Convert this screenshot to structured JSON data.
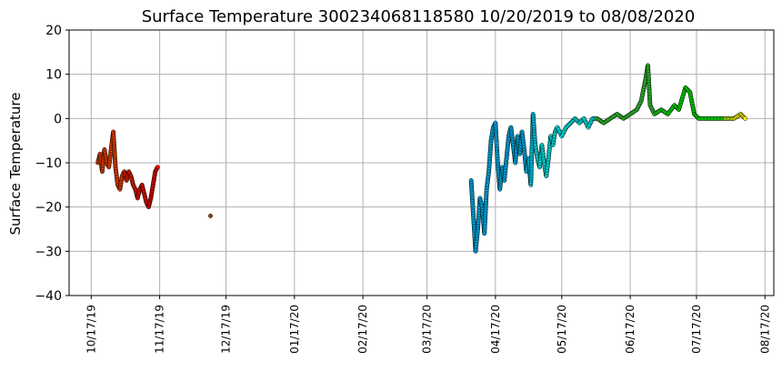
{
  "chart_data": {
    "type": "scatter",
    "title": "Surface Temperature 300234068118580  10/20/2019 to 08/08/2020",
    "xlabel": "",
    "ylabel": "Surface Temperature",
    "ylim": [
      -40,
      20
    ],
    "xlim": [
      "2019-10-07",
      "2020-08-21"
    ],
    "yticks": [
      20,
      10,
      0,
      -10,
      -20,
      -30,
      -40
    ],
    "xticks": [
      {
        "date": "2019-10-17",
        "label": "10/17/19"
      },
      {
        "date": "2019-11-17",
        "label": "11/17/19"
      },
      {
        "date": "2019-12-17",
        "label": "12/17/19"
      },
      {
        "date": "2020-01-17",
        "label": "01/17/20"
      },
      {
        "date": "2020-02-17",
        "label": "02/17/20"
      },
      {
        "date": "2020-03-17",
        "label": "03/17/20"
      },
      {
        "date": "2020-04-17",
        "label": "04/17/20"
      },
      {
        "date": "2020-05-17",
        "label": "05/17/20"
      },
      {
        "date": "2020-06-17",
        "label": "06/17/20"
      },
      {
        "date": "2020-07-17",
        "label": "07/17/20"
      },
      {
        "date": "2020-08-17",
        "label": "08/17/20"
      }
    ],
    "grid": true,
    "points": [
      {
        "x": "2019-10-20",
        "y": -10,
        "color": "#ff4500"
      },
      {
        "x": "2019-10-21",
        "y": -8,
        "color": "#ff4500"
      },
      {
        "x": "2019-10-22",
        "y": -12,
        "color": "#ff4500"
      },
      {
        "x": "2019-10-23",
        "y": -7,
        "color": "#ff4500"
      },
      {
        "x": "2019-10-24",
        "y": -10,
        "color": "#ff4500"
      },
      {
        "x": "2019-10-25",
        "y": -11,
        "color": "#ff4500"
      },
      {
        "x": "2019-10-27",
        "y": -3,
        "color": "#ff4500"
      },
      {
        "x": "2019-10-28",
        "y": -11,
        "color": "#ff4500"
      },
      {
        "x": "2019-10-29",
        "y": -15,
        "color": "#ff4500"
      },
      {
        "x": "2019-10-30",
        "y": -16,
        "color": "#ff4500"
      },
      {
        "x": "2019-10-31",
        "y": -13,
        "color": "#ff4500"
      },
      {
        "x": "2019-11-01",
        "y": -12,
        "color": "#ff2000"
      },
      {
        "x": "2019-11-02",
        "y": -14,
        "color": "#ff2000"
      },
      {
        "x": "2019-11-03",
        "y": -12,
        "color": "#ff2000"
      },
      {
        "x": "2019-11-04",
        "y": -13,
        "color": "#ff2000"
      },
      {
        "x": "2019-11-05",
        "y": -15,
        "color": "#ff2000"
      },
      {
        "x": "2019-11-06",
        "y": -16,
        "color": "#ff1000"
      },
      {
        "x": "2019-11-07",
        "y": -18,
        "color": "#ff1000"
      },
      {
        "x": "2019-11-08",
        "y": -16,
        "color": "#ff1000"
      },
      {
        "x": "2019-11-09",
        "y": -15,
        "color": "#ff1000"
      },
      {
        "x": "2019-11-10",
        "y": -17,
        "color": "#ff1000"
      },
      {
        "x": "2019-11-11",
        "y": -19,
        "color": "#ff0000"
      },
      {
        "x": "2019-11-12",
        "y": -20,
        "color": "#ff0000"
      },
      {
        "x": "2019-11-13",
        "y": -18,
        "color": "#ff0000"
      },
      {
        "x": "2019-11-14",
        "y": -15,
        "color": "#ff0000"
      },
      {
        "x": "2019-11-15",
        "y": -12,
        "color": "#ff0000"
      },
      {
        "x": "2019-11-16",
        "y": -11,
        "color": "#ff0000"
      },
      {
        "x": "2019-12-10",
        "y": -22,
        "color": "#8b4513"
      },
      {
        "x": "2020-04-06",
        "y": -14,
        "color": "#00bfff"
      },
      {
        "x": "2020-04-07",
        "y": -22,
        "color": "#00bfff"
      },
      {
        "x": "2020-04-08",
        "y": -30,
        "color": "#00bfff"
      },
      {
        "x": "2020-04-09",
        "y": -25,
        "color": "#00bfff"
      },
      {
        "x": "2020-04-10",
        "y": -18,
        "color": "#00bfff"
      },
      {
        "x": "2020-04-11",
        "y": -20,
        "color": "#00bfff"
      },
      {
        "x": "2020-04-12",
        "y": -26,
        "color": "#00bfff"
      },
      {
        "x": "2020-04-13",
        "y": -16,
        "color": "#00bfff"
      },
      {
        "x": "2020-04-14",
        "y": -12,
        "color": "#00bfff"
      },
      {
        "x": "2020-04-15",
        "y": -5,
        "color": "#00bfff"
      },
      {
        "x": "2020-04-16",
        "y": -2,
        "color": "#00bfff"
      },
      {
        "x": "2020-04-17",
        "y": -1,
        "color": "#00bfff"
      },
      {
        "x": "2020-04-18",
        "y": -10,
        "color": "#00bfff"
      },
      {
        "x": "2020-04-19",
        "y": -16,
        "color": "#00bfff"
      },
      {
        "x": "2020-04-20",
        "y": -11,
        "color": "#00bfff"
      },
      {
        "x": "2020-04-21",
        "y": -14,
        "color": "#00bfff"
      },
      {
        "x": "2020-04-22",
        "y": -9,
        "color": "#00bfff"
      },
      {
        "x": "2020-04-23",
        "y": -4,
        "color": "#00bfff"
      },
      {
        "x": "2020-04-24",
        "y": -2,
        "color": "#00bfff"
      },
      {
        "x": "2020-04-25",
        "y": -6,
        "color": "#00bfff"
      },
      {
        "x": "2020-04-26",
        "y": -10,
        "color": "#00bfff"
      },
      {
        "x": "2020-04-27",
        "y": -4,
        "color": "#00bfff"
      },
      {
        "x": "2020-04-28",
        "y": -8,
        "color": "#00bfff"
      },
      {
        "x": "2020-04-29",
        "y": -3,
        "color": "#00bfff"
      },
      {
        "x": "2020-04-30",
        "y": -7,
        "color": "#00bfff"
      },
      {
        "x": "2020-05-01",
        "y": -12,
        "color": "#00d8ff"
      },
      {
        "x": "2020-05-02",
        "y": -9,
        "color": "#00d8ff"
      },
      {
        "x": "2020-05-03",
        "y": -15,
        "color": "#00d8ff"
      },
      {
        "x": "2020-05-04",
        "y": 1,
        "color": "#00d8ff"
      },
      {
        "x": "2020-05-05",
        "y": -6,
        "color": "#00ffff"
      },
      {
        "x": "2020-05-06",
        "y": -9,
        "color": "#00ffff"
      },
      {
        "x": "2020-05-07",
        "y": -11,
        "color": "#00ffff"
      },
      {
        "x": "2020-05-08",
        "y": -6,
        "color": "#00ffff"
      },
      {
        "x": "2020-05-09",
        "y": -10,
        "color": "#00ffff"
      },
      {
        "x": "2020-05-10",
        "y": -13,
        "color": "#00ffff"
      },
      {
        "x": "2020-05-11",
        "y": -9,
        "color": "#00ffff"
      },
      {
        "x": "2020-05-12",
        "y": -4,
        "color": "#00ffff"
      },
      {
        "x": "2020-05-13",
        "y": -6,
        "color": "#00ffff"
      },
      {
        "x": "2020-05-14",
        "y": -3,
        "color": "#00ffff"
      },
      {
        "x": "2020-05-15",
        "y": -2,
        "color": "#00ffff"
      },
      {
        "x": "2020-05-17",
        "y": -4,
        "color": "#00ffff"
      },
      {
        "x": "2020-05-19",
        "y": -2,
        "color": "#00ffff"
      },
      {
        "x": "2020-05-21",
        "y": -1,
        "color": "#00ffff"
      },
      {
        "x": "2020-05-23",
        "y": 0,
        "color": "#00ffff"
      },
      {
        "x": "2020-05-25",
        "y": -1,
        "color": "#00ffff"
      },
      {
        "x": "2020-05-27",
        "y": 0,
        "color": "#00ffff"
      },
      {
        "x": "2020-05-29",
        "y": -2,
        "color": "#00ffff"
      },
      {
        "x": "2020-05-31",
        "y": 0,
        "color": "#00ffff"
      },
      {
        "x": "2020-06-02",
        "y": 0,
        "color": "#33cc33"
      },
      {
        "x": "2020-06-05",
        "y": -1,
        "color": "#33cc33"
      },
      {
        "x": "2020-06-08",
        "y": 0,
        "color": "#33cc33"
      },
      {
        "x": "2020-06-11",
        "y": 1,
        "color": "#33cc33"
      },
      {
        "x": "2020-06-14",
        "y": 0,
        "color": "#33cc33"
      },
      {
        "x": "2020-06-17",
        "y": 1,
        "color": "#33cc33"
      },
      {
        "x": "2020-06-20",
        "y": 2,
        "color": "#33cc33"
      },
      {
        "x": "2020-06-22",
        "y": 4,
        "color": "#33cc33"
      },
      {
        "x": "2020-06-24",
        "y": 9,
        "color": "#33cc33"
      },
      {
        "x": "2020-06-25",
        "y": 12,
        "color": "#33cc33"
      },
      {
        "x": "2020-06-26",
        "y": 3,
        "color": "#33cc33"
      },
      {
        "x": "2020-06-28",
        "y": 1,
        "color": "#22dd22"
      },
      {
        "x": "2020-07-01",
        "y": 2,
        "color": "#00ee00"
      },
      {
        "x": "2020-07-04",
        "y": 1,
        "color": "#00ee00"
      },
      {
        "x": "2020-07-07",
        "y": 3,
        "color": "#00ee00"
      },
      {
        "x": "2020-07-09",
        "y": 2,
        "color": "#00ee00"
      },
      {
        "x": "2020-07-12",
        "y": 7,
        "color": "#00ee00"
      },
      {
        "x": "2020-07-14",
        "y": 6,
        "color": "#00ee00"
      },
      {
        "x": "2020-07-16",
        "y": 1,
        "color": "#00ee00"
      },
      {
        "x": "2020-07-18",
        "y": 0,
        "color": "#00ff00"
      },
      {
        "x": "2020-07-22",
        "y": 0,
        "color": "#00ff00"
      },
      {
        "x": "2020-07-26",
        "y": 0,
        "color": "#00ff00"
      },
      {
        "x": "2020-07-30",
        "y": 0,
        "color": "#ccff00"
      },
      {
        "x": "2020-08-03",
        "y": 0,
        "color": "#ffff00"
      },
      {
        "x": "2020-08-06",
        "y": 1,
        "color": "#ffff00"
      },
      {
        "x": "2020-08-08",
        "y": 0,
        "color": "#ffff00"
      }
    ]
  }
}
